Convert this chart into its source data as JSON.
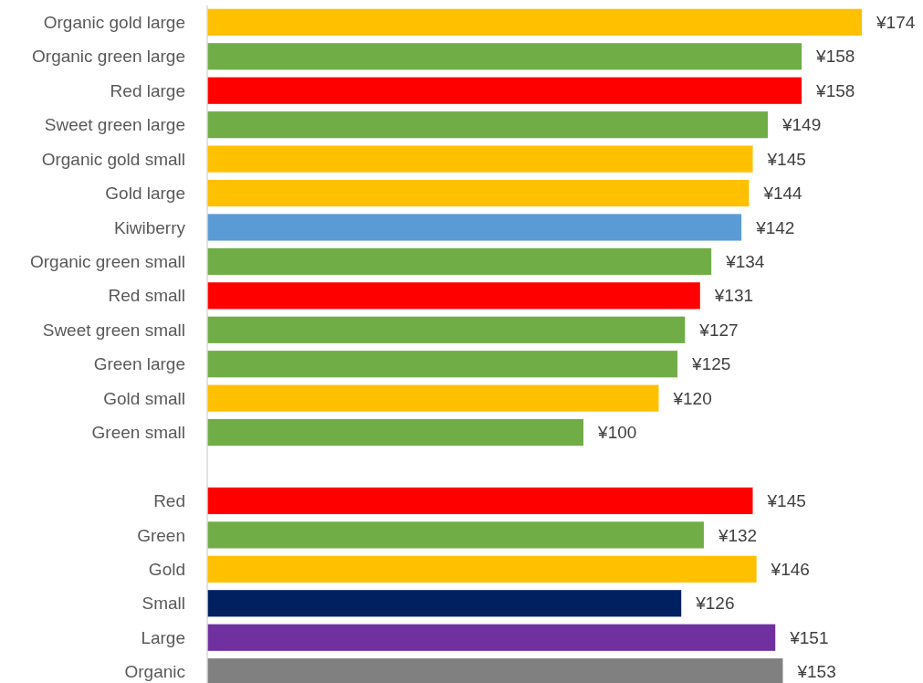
{
  "chart_data": {
    "type": "bar",
    "orientation": "horizontal",
    "categories": [
      "Organic gold large",
      "Organic green large",
      "Red large",
      "Sweet green large",
      "Organic gold small",
      "Gold large",
      "Kiwiberry",
      "Organic green small",
      "Red small",
      "Sweet green small",
      "Green large",
      "Gold small",
      "Green small",
      null,
      "Red",
      "Green",
      "Gold",
      "Small",
      "Large",
      "Organic"
    ],
    "values": [
      174,
      158,
      158,
      149,
      145,
      144,
      142,
      134,
      131,
      127,
      125,
      120,
      100,
      null,
      145,
      132,
      146,
      126,
      151,
      153
    ],
    "colors": [
      "#ffc000",
      "#70ad47",
      "#ff0000",
      "#70ad47",
      "#ffc000",
      "#ffc000",
      "#5b9bd5",
      "#70ad47",
      "#ff0000",
      "#70ad47",
      "#70ad47",
      "#ffc000",
      "#70ad47",
      null,
      "#ff0000",
      "#70ad47",
      "#ffc000",
      "#002060",
      "#7030a0",
      "#808080"
    ],
    "value_labels": [
      "¥174",
      "¥158",
      "¥158",
      "¥149",
      "¥145",
      "¥144",
      "¥142",
      "¥134",
      "¥131",
      "¥127",
      "¥125",
      "¥120",
      "¥100",
      null,
      "¥145",
      "¥132",
      "¥146",
      "¥126",
      "¥151",
      "¥153"
    ]
  }
}
